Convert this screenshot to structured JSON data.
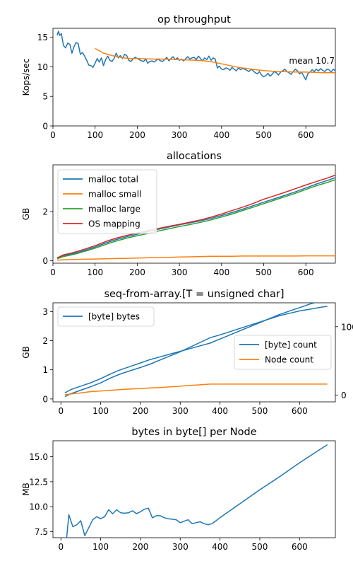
{
  "chart_data": [
    {
      "type": "line",
      "title": "op throughput",
      "xlabel": "",
      "ylabel": "Kops/sec",
      "xlim": [
        0,
        670
      ],
      "ylim": [
        0,
        16.5
      ],
      "xticks": [
        0,
        100,
        200,
        300,
        400,
        500,
        600
      ],
      "yticks": [
        0,
        5,
        10,
        15
      ],
      "annotation": "mean 10.7",
      "colors": [
        "#1f77b4",
        "#ff7f0e"
      ],
      "series": [
        {
          "x": [
            10,
            13,
            16,
            20,
            25,
            30,
            35,
            40,
            45,
            50,
            55,
            60,
            65,
            70,
            75,
            80,
            85,
            90,
            95,
            100,
            105,
            110,
            115,
            120,
            125,
            130,
            135,
            140,
            145,
            150,
            155,
            160,
            165,
            170,
            175,
            180,
            185,
            190,
            195,
            200,
            205,
            210,
            215,
            220,
            225,
            230,
            235,
            240,
            245,
            250,
            255,
            260,
            265,
            270,
            275,
            280,
            285,
            290,
            295,
            300,
            305,
            310,
            315,
            320,
            325,
            330,
            335,
            340,
            345,
            350,
            355,
            360,
            365,
            370,
            375,
            380,
            385,
            390,
            395,
            400,
            405,
            410,
            415,
            420,
            425,
            430,
            435,
            440,
            445,
            450,
            455,
            460,
            465,
            470,
            475,
            480,
            485,
            490,
            495,
            500,
            505,
            510,
            515,
            520,
            525,
            530,
            535,
            540,
            545,
            550,
            555,
            560,
            565,
            570,
            575,
            580,
            585,
            590,
            595,
            600,
            605,
            610,
            615,
            620,
            625,
            630,
            635,
            640,
            645,
            650,
            655,
            660,
            665,
            670
          ],
          "values": [
            15.3,
            16.0,
            15.3,
            15.6,
            13.6,
            13.2,
            14.0,
            13.8,
            12.3,
            13.4,
            14.1,
            13.9,
            12.1,
            12.4,
            11.8,
            11.1,
            10.3,
            10.2,
            9.9,
            10.6,
            11.4,
            10.8,
            11.5,
            10.2,
            11.2,
            11.8,
            11.1,
            10.9,
            11.4,
            12.3,
            11.5,
            11.9,
            11.4,
            12.1,
            11.9,
            11.1,
            10.9,
            11.3,
            11.6,
            11.4,
            11.2,
            11.0,
            10.9,
            11.3,
            10.6,
            10.9,
            11.0,
            10.8,
            11.1,
            11.3,
            11.0,
            10.9,
            11.2,
            11.6,
            11.0,
            11.4,
            11.7,
            11.2,
            11.5,
            11.1,
            11.3,
            11.0,
            11.4,
            11.7,
            11.3,
            11.5,
            11.6,
            11.2,
            11.8,
            11.4,
            11.0,
            11.5,
            11.2,
            11.8,
            11.1,
            11.5,
            11.3,
            9.8,
            10.1,
            9.6,
            9.5,
            9.8,
            9.7,
            9.4,
            9.9,
            9.6,
            9.3,
            9.8,
            9.5,
            9.7,
            9.6,
            9.4,
            9.2,
            9.6,
            9.3,
            9.0,
            8.8,
            9.2,
            8.6,
            8.3,
            8.5,
            8.9,
            8.4,
            8.7,
            9.2,
            9.0,
            8.6,
            9.1,
            9.3,
            9.6,
            9.2,
            9.0,
            8.7,
            9.2,
            9.6,
            9.3,
            8.8,
            9.1,
            8.4,
            7.8,
            8.9,
            9.1,
            9.5,
            9.2,
            9.6,
            9.3,
            9.7,
            9.4,
            9.2,
            9.6,
            9.5,
            9.1,
            9.6,
            9.3
          ]
        },
        {
          "x": [
            100,
            120,
            140,
            160,
            180,
            200,
            220,
            240,
            260,
            280,
            300,
            320,
            340,
            360,
            380,
            400,
            420,
            440,
            460,
            480,
            500,
            520,
            540,
            560,
            580,
            600,
            620,
            640,
            670
          ],
          "values": [
            13.1,
            12.3,
            11.9,
            11.6,
            11.4,
            11.4,
            11.35,
            11.3,
            11.3,
            11.25,
            11.2,
            11.15,
            11.1,
            11.0,
            10.8,
            10.5,
            10.2,
            9.9,
            9.7,
            9.5,
            9.35,
            9.25,
            9.2,
            9.15,
            9.1,
            9.1,
            9.05,
            9.0,
            9.0
          ]
        }
      ]
    },
    {
      "type": "line",
      "title": "allocations",
      "xlabel": "",
      "ylabel": "GB",
      "xlim": [
        0,
        670
      ],
      "ylim": [
        -0.1,
        3.9
      ],
      "xticks": [
        0,
        100,
        200,
        300,
        400,
        500,
        600
      ],
      "yticks": [
        0,
        2
      ],
      "legend_position": "top-left",
      "colors": [
        "#1f77b4",
        "#ff7f0e",
        "#2ca02c",
        "#d62728"
      ],
      "x": [
        10,
        25,
        50,
        75,
        100,
        125,
        150,
        175,
        200,
        225,
        250,
        275,
        300,
        325,
        350,
        375,
        400,
        425,
        450,
        475,
        500,
        525,
        550,
        575,
        600,
        625,
        650,
        670
      ],
      "series": [
        {
          "name": "malloc total",
          "values": [
            0.1,
            0.2,
            0.3,
            0.42,
            0.56,
            0.72,
            0.86,
            0.98,
            1.08,
            1.18,
            1.28,
            1.37,
            1.46,
            1.54,
            1.62,
            1.72,
            1.84,
            1.96,
            2.1,
            2.24,
            2.38,
            2.52,
            2.66,
            2.8,
            2.96,
            3.12,
            3.26,
            3.38
          ]
        },
        {
          "name": "malloc small",
          "values": [
            0.02,
            0.04,
            0.05,
            0.06,
            0.07,
            0.08,
            0.09,
            0.1,
            0.11,
            0.12,
            0.13,
            0.14,
            0.15,
            0.16,
            0.17,
            0.18,
            0.18,
            0.18,
            0.19,
            0.19,
            0.19,
            0.19,
            0.19,
            0.19,
            0.2,
            0.2,
            0.2,
            0.2
          ]
        },
        {
          "name": "malloc large",
          "values": [
            0.08,
            0.17,
            0.26,
            0.38,
            0.51,
            0.66,
            0.8,
            0.92,
            1.02,
            1.11,
            1.21,
            1.3,
            1.39,
            1.47,
            1.56,
            1.66,
            1.78,
            1.9,
            2.04,
            2.18,
            2.32,
            2.46,
            2.6,
            2.74,
            2.9,
            3.05,
            3.18,
            3.3
          ]
        },
        {
          "name": "OS mapping",
          "values": [
            0.12,
            0.24,
            0.34,
            0.47,
            0.61,
            0.78,
            0.92,
            1.03,
            1.13,
            1.22,
            1.31,
            1.4,
            1.48,
            1.57,
            1.66,
            1.77,
            1.9,
            2.04,
            2.18,
            2.33,
            2.5,
            2.64,
            2.78,
            2.93,
            3.08,
            3.22,
            3.36,
            3.48
          ]
        }
      ]
    },
    {
      "type": "line",
      "title": "seq-from-array.[T = unsigned char]",
      "xlabel": "",
      "ylabel": "GB",
      "xlim": [
        -20,
        690
      ],
      "ylim": [
        -0.1,
        3.3
      ],
      "xticks": [
        0,
        100,
        200,
        300,
        400,
        500,
        600
      ],
      "yticks": [
        0,
        1,
        2,
        3
      ],
      "y2lim": [
        -10,
        135
      ],
      "y2ticks": [
        0,
        100
      ],
      "legend_left": "top-left",
      "legend_right": "center-right",
      "colors": [
        "#1f77b4",
        "#1f77b4",
        "#ff7f0e"
      ],
      "left_series": [
        {
          "name": "[byte] bytes",
          "x": [
            10,
            25,
            50,
            75,
            100,
            125,
            150,
            175,
            200,
            225,
            250,
            275,
            300,
            325,
            350,
            375,
            400,
            425,
            450,
            475,
            500,
            525,
            550,
            575,
            600,
            625,
            650,
            670
          ],
          "values": [
            0.08,
            0.18,
            0.3,
            0.42,
            0.55,
            0.72,
            0.86,
            0.97,
            1.08,
            1.2,
            1.34,
            1.48,
            1.62,
            1.78,
            1.94,
            2.1,
            2.2,
            2.31,
            2.42,
            2.53,
            2.64,
            2.75,
            2.86,
            2.94,
            3.02,
            3.08,
            3.14,
            3.18
          ]
        }
      ],
      "right_series": [
        {
          "name": "[byte] count",
          "x": [
            10,
            25,
            50,
            75,
            100,
            125,
            150,
            175,
            200,
            225,
            250,
            275,
            300,
            325,
            350,
            375,
            400,
            425,
            450,
            475,
            500,
            525,
            550,
            575,
            600,
            625,
            650,
            670
          ],
          "values": [
            3,
            8,
            13,
            18,
            24,
            31,
            37,
            42,
            47,
            52,
            56,
            60,
            64,
            68,
            72,
            76,
            82,
            88,
            94,
            100,
            106,
            112,
            118,
            123,
            128,
            133,
            137,
            141
          ]
        },
        {
          "name": "Node count",
          "x": [
            10,
            25,
            50,
            75,
            100,
            125,
            150,
            175,
            200,
            225,
            250,
            275,
            300,
            325,
            350,
            375,
            400,
            425,
            450,
            475,
            500,
            525,
            550,
            575,
            600,
            625,
            650,
            670
          ],
          "values": [
            0.5,
            1.5,
            3,
            5,
            6,
            7,
            8,
            9,
            9.5,
            10.5,
            11,
            12,
            13,
            14,
            15,
            16,
            16,
            16,
            16,
            16,
            16,
            16,
            16,
            16,
            16,
            16,
            16,
            16
          ]
        }
      ]
    },
    {
      "type": "line",
      "title": "bytes in byte[] per Node",
      "xlabel": "",
      "ylabel": "MB",
      "xlim": [
        -20,
        690
      ],
      "ylim": [
        6.9,
        16.6
      ],
      "xticks": [
        0,
        100,
        200,
        300,
        400,
        500,
        600,
        700
      ],
      "yticks": [
        7.5,
        10.0,
        12.5,
        15.0
      ],
      "colors": [
        "#1f77b4"
      ],
      "series": [
        {
          "x": [
            10,
            20,
            30,
            40,
            50,
            60,
            70,
            80,
            90,
            100,
            110,
            120,
            130,
            140,
            150,
            160,
            170,
            180,
            190,
            200,
            210,
            220,
            230,
            240,
            250,
            260,
            270,
            280,
            290,
            300,
            310,
            320,
            330,
            340,
            350,
            360,
            370,
            380,
            390,
            400,
            450,
            500,
            550,
            600,
            650,
            670
          ],
          "values": [
            5.0,
            9.2,
            8.0,
            8.2,
            8.6,
            7.1,
            7.9,
            8.7,
            9.0,
            8.8,
            9.0,
            9.7,
            9.3,
            9.7,
            9.4,
            9.35,
            9.4,
            9.6,
            9.3,
            9.5,
            9.75,
            9.85,
            8.9,
            9.1,
            9.1,
            8.9,
            8.8,
            8.75,
            8.7,
            8.4,
            8.55,
            8.7,
            8.3,
            8.4,
            8.5,
            8.3,
            8.2,
            8.3,
            8.6,
            8.9,
            10.3,
            11.7,
            13.0,
            14.4,
            15.7,
            16.2
          ]
        }
      ]
    }
  ]
}
